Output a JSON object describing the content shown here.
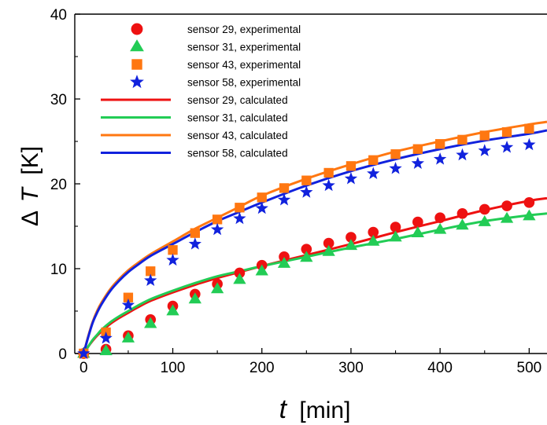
{
  "chart_data": {
    "type": "scatter",
    "title": "",
    "xlabel": {
      "symbol": "t",
      "unit": "[min]"
    },
    "ylabel": {
      "symbol": "ΔT",
      "delta": "Δ",
      "var": "T",
      "unit": "[K]"
    },
    "xlim": [
      -10,
      520
    ],
    "ylim": [
      0,
      40
    ],
    "xticks": [
      0,
      100,
      200,
      300,
      400,
      500
    ],
    "yticks": [
      0,
      10,
      20,
      30,
      40
    ],
    "xtick_labels": [
      "0",
      "100",
      "200",
      "300",
      "400",
      "500"
    ],
    "ytick_labels": [
      "0",
      "10",
      "20",
      "30",
      "40"
    ],
    "grid": false,
    "legend_position": "top-left",
    "experimental_x": [
      0,
      25,
      50,
      75,
      100,
      125,
      150,
      175,
      200,
      225,
      250,
      275,
      300,
      325,
      350,
      375,
      400,
      425,
      450,
      475,
      500
    ],
    "calculated_x": [
      0,
      5,
      10,
      15,
      20,
      30,
      40,
      50,
      60,
      75,
      100,
      125,
      150,
      175,
      200,
      250,
      300,
      350,
      400,
      450,
      500,
      520
    ],
    "series": [
      {
        "name": "sensor 29, experimental",
        "kind": "experimental",
        "marker": "circle",
        "color": "#ee1111",
        "values": [
          0,
          0.5,
          2.1,
          4.0,
          5.6,
          7.0,
          8.2,
          9.5,
          10.4,
          11.4,
          12.3,
          13.0,
          13.7,
          14.3,
          14.9,
          15.5,
          16.0,
          16.5,
          17.0,
          17.4,
          17.8
        ]
      },
      {
        "name": "sensor 31, experimental",
        "kind": "experimental",
        "marker": "triangle",
        "color": "#22cc55",
        "values": [
          0,
          0.3,
          1.8,
          3.5,
          5.0,
          6.4,
          7.6,
          8.7,
          9.7,
          10.6,
          11.3,
          12.0,
          12.7,
          13.2,
          13.7,
          14.2,
          14.6,
          15.1,
          15.5,
          15.9,
          16.2
        ]
      },
      {
        "name": "sensor 43, experimental",
        "kind": "experimental",
        "marker": "square",
        "color": "#ff7711",
        "values": [
          0,
          2.5,
          6.6,
          9.7,
          12.2,
          14.2,
          15.8,
          17.2,
          18.4,
          19.5,
          20.4,
          21.3,
          22.1,
          22.8,
          23.5,
          24.1,
          24.7,
          25.2,
          25.7,
          26.1,
          26.5
        ]
      },
      {
        "name": "sensor 58, experimental",
        "kind": "experimental",
        "marker": "star",
        "color": "#1122dd",
        "values": [
          0,
          1.8,
          5.7,
          8.6,
          11.0,
          12.9,
          14.6,
          15.9,
          17.1,
          18.1,
          19.0,
          19.8,
          20.6,
          21.2,
          21.8,
          22.4,
          22.9,
          23.4,
          23.9,
          24.3,
          24.6
        ]
      },
      {
        "name": "sensor 29, calculated",
        "kind": "calculated",
        "color": "#ee1111",
        "values": [
          0,
          0.8,
          1.5,
          2.1,
          2.6,
          3.5,
          4.2,
          4.8,
          5.4,
          6.2,
          7.2,
          8.1,
          8.9,
          9.6,
          10.3,
          11.6,
          12.9,
          14.3,
          15.6,
          16.9,
          18.0,
          18.3
        ]
      },
      {
        "name": "sensor 31, calculated",
        "kind": "calculated",
        "color": "#22cc55",
        "values": [
          0,
          0.8,
          1.6,
          2.2,
          2.8,
          3.7,
          4.4,
          5.0,
          5.6,
          6.4,
          7.4,
          8.3,
          9.1,
          9.7,
          10.3,
          11.4,
          12.5,
          13.5,
          14.6,
          15.6,
          16.3,
          16.5
        ]
      },
      {
        "name": "sensor 43, calculated",
        "kind": "calculated",
        "color": "#ff7711",
        "values": [
          0,
          2.0,
          3.7,
          5.0,
          6.0,
          7.6,
          8.8,
          9.8,
          10.6,
          11.7,
          13.2,
          14.7,
          16.0,
          17.3,
          18.6,
          20.6,
          22.3,
          23.8,
          25.0,
          26.1,
          27.0,
          27.3
        ]
      },
      {
        "name": "sensor 58, calculated",
        "kind": "calculated",
        "color": "#1122dd",
        "values": [
          0,
          1.9,
          3.6,
          4.8,
          5.8,
          7.4,
          8.6,
          9.6,
          10.4,
          11.5,
          12.9,
          14.3,
          15.6,
          16.7,
          17.8,
          19.8,
          21.5,
          22.9,
          24.1,
          25.1,
          25.9,
          26.3
        ]
      }
    ]
  }
}
